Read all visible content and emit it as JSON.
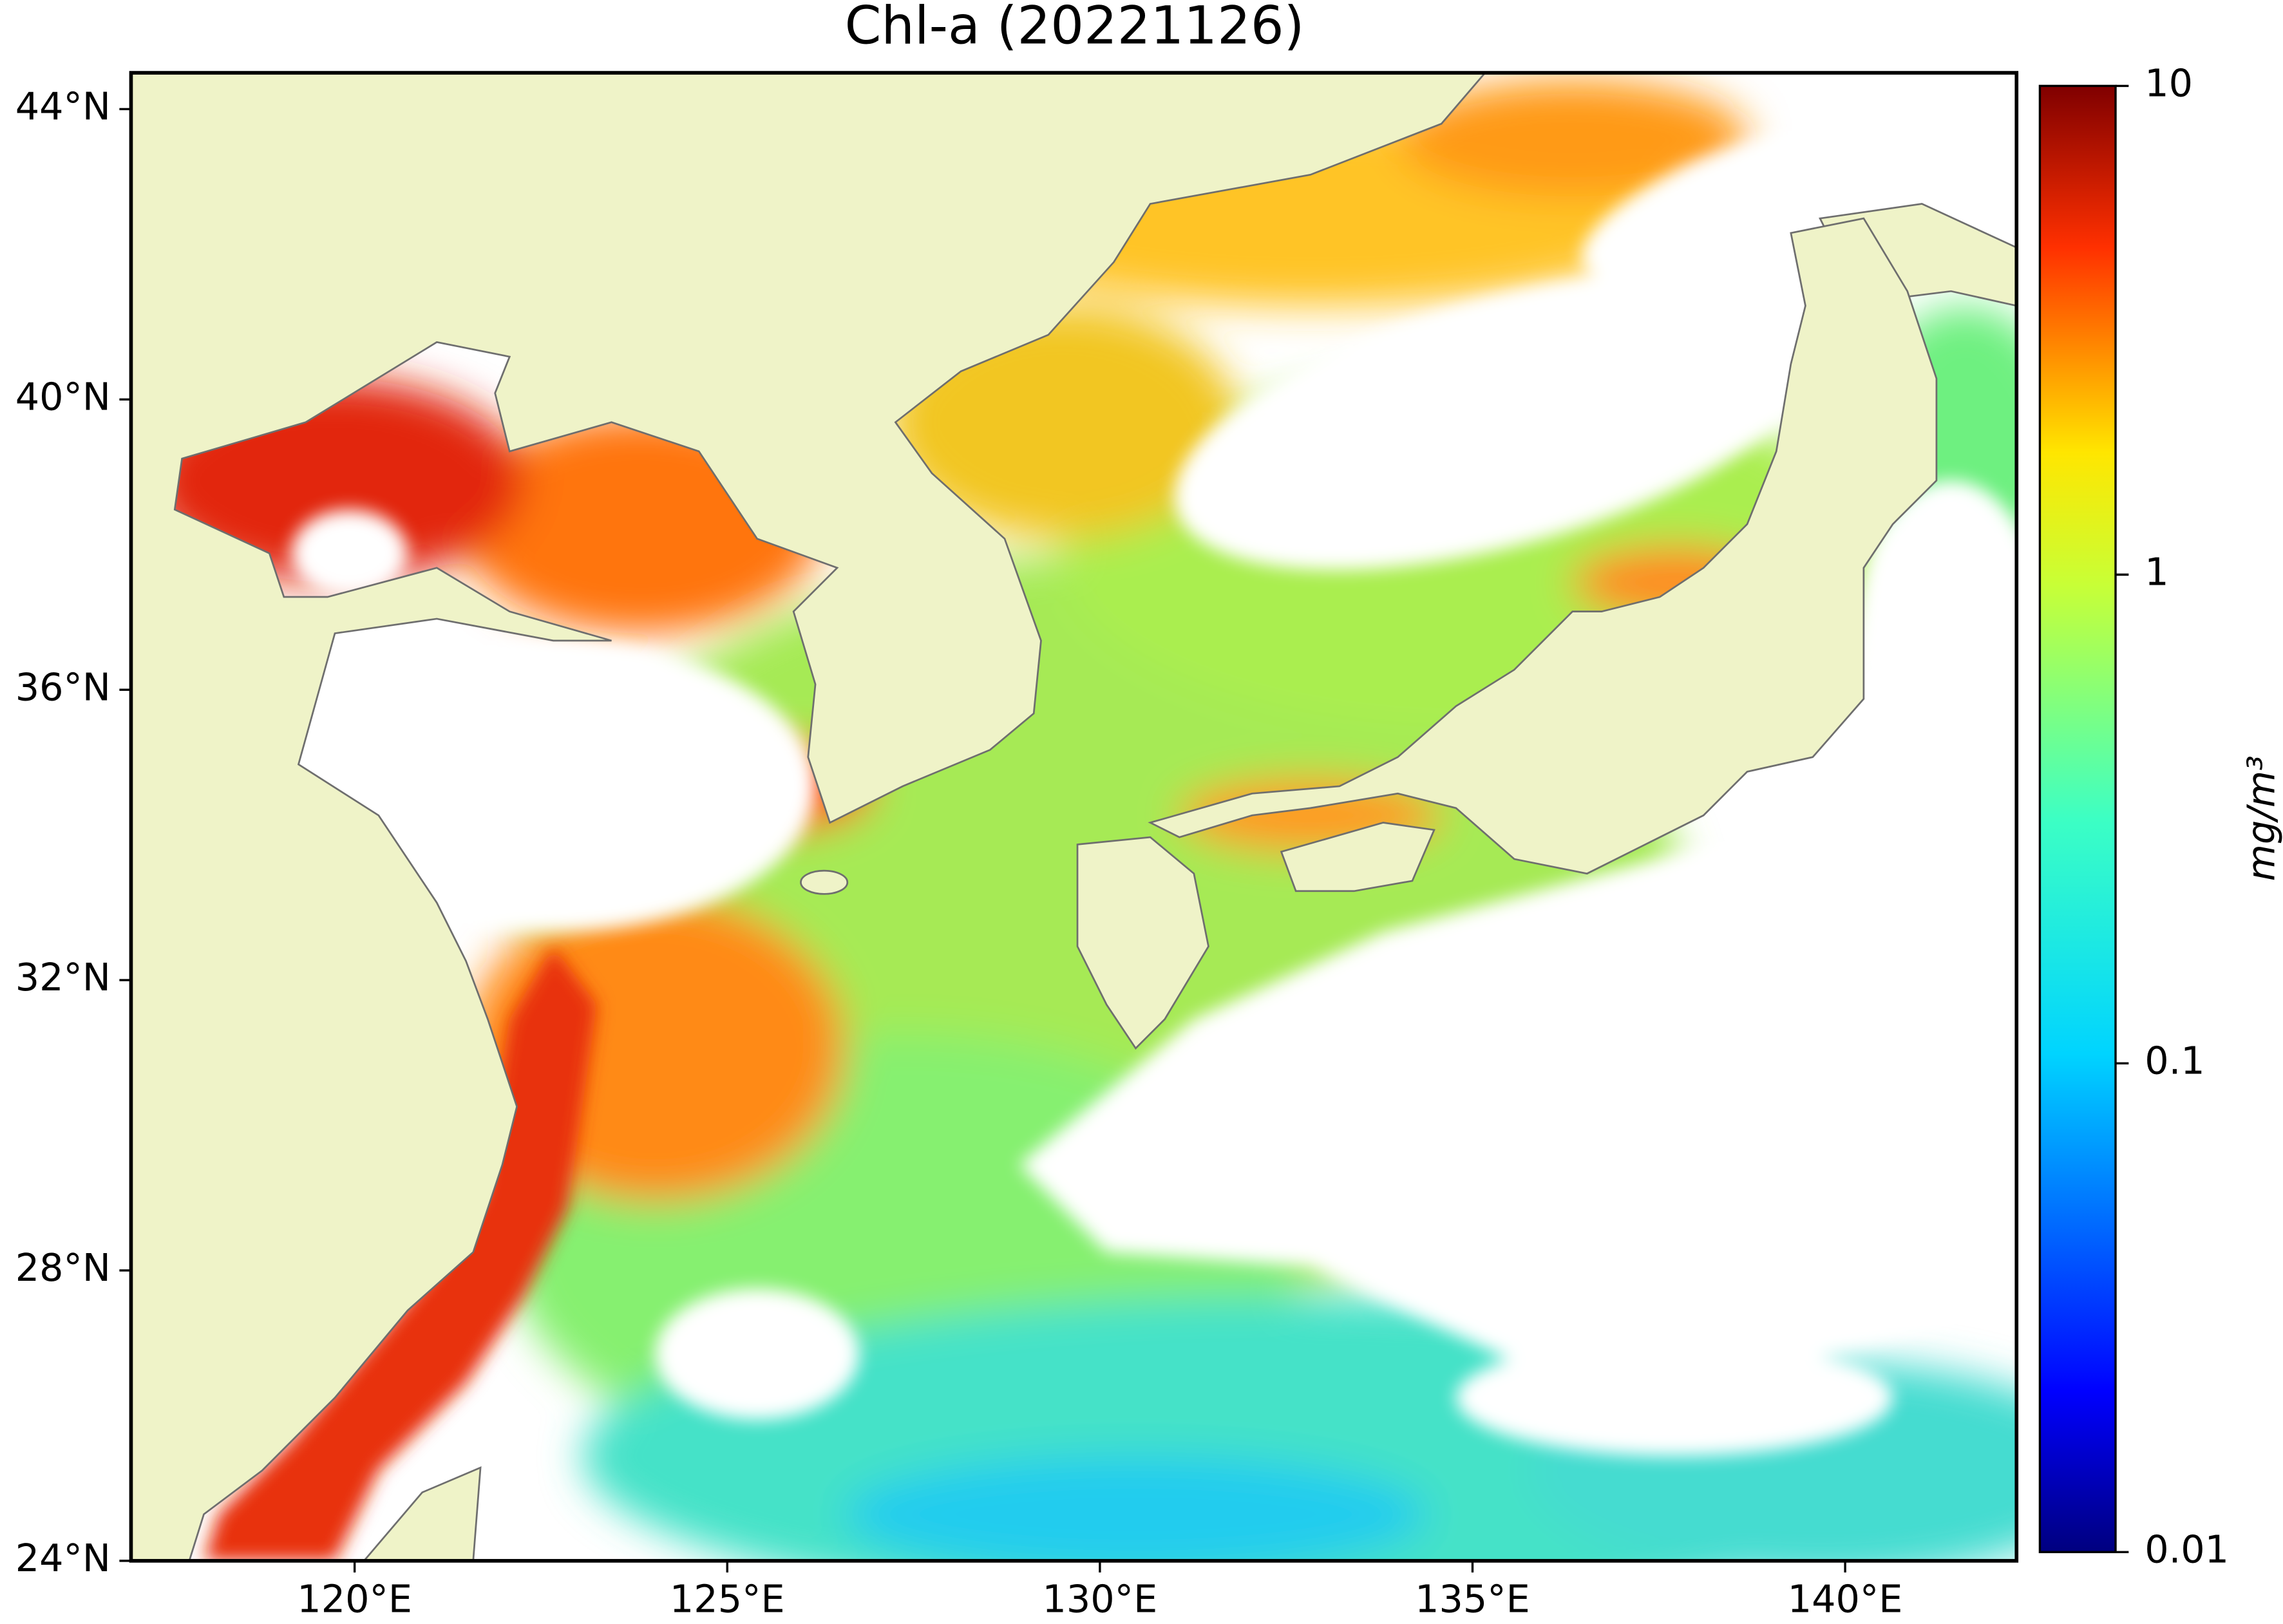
{
  "map": {
    "title": "Chl-a (20221126)",
    "xlim": [
      117,
      142.3
    ],
    "ylim": [
      24,
      44.5
    ],
    "xticks": [
      {
        "value": 120,
        "label": "120°E"
      },
      {
        "value": 125,
        "label": "125°E"
      },
      {
        "value": 130,
        "label": "130°E"
      },
      {
        "value": 135,
        "label": "135°E"
      },
      {
        "value": 140,
        "label": "140°E"
      }
    ],
    "yticks": [
      {
        "value": 24,
        "label": "24°N"
      },
      {
        "value": 28,
        "label": "28°N"
      },
      {
        "value": 32,
        "label": "32°N"
      },
      {
        "value": 36,
        "label": "36°N"
      },
      {
        "value": 40,
        "label": "40°N"
      },
      {
        "value": 44,
        "label": "44°N"
      }
    ],
    "colorbar": {
      "label": "mg/m³",
      "scale": "log",
      "lim": [
        0.01,
        10
      ],
      "ticks": [
        0.01,
        0.1,
        1,
        10
      ]
    }
  }
}
